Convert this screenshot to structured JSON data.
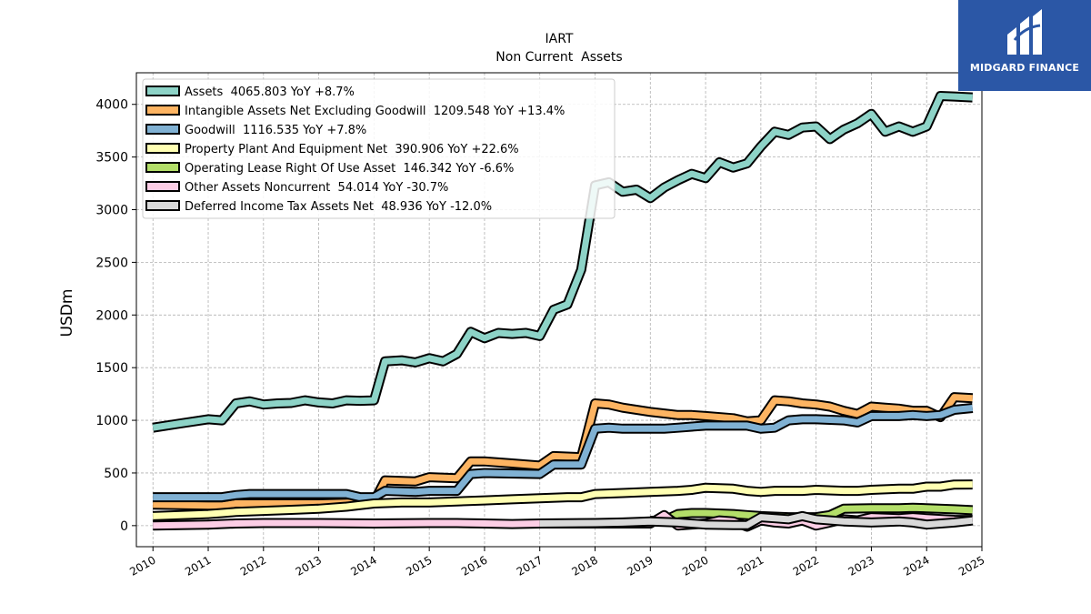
{
  "chart_data": {
    "type": "line",
    "title": "IART",
    "subtitle": "Non Current  Assets",
    "ylabel": "USDm",
    "xlabel": "",
    "ylim": [
      -200,
      4300
    ],
    "xlim": [
      2009.7,
      2025.0
    ],
    "grid": true,
    "legend_placement": "top-left",
    "x_ticks": [
      2010,
      2011,
      2012,
      2013,
      2014,
      2015,
      2016,
      2017,
      2018,
      2019,
      2020,
      2021,
      2022,
      2023,
      2024,
      2025
    ],
    "y_ticks": [
      0,
      500,
      1000,
      1500,
      2000,
      2500,
      3000,
      3500,
      4000
    ],
    "series": [
      {
        "name": "Assets",
        "legend": "Assets  4065.803 YoY +8.7%",
        "color": "#8dd3c7",
        "points": [
          [
            2010.0,
            930
          ],
          [
            2010.5,
            970
          ],
          [
            2011.0,
            1010
          ],
          [
            2011.25,
            1000
          ],
          [
            2011.5,
            1160
          ],
          [
            2011.75,
            1180
          ],
          [
            2012.0,
            1150
          ],
          [
            2012.25,
            1160
          ],
          [
            2012.5,
            1165
          ],
          [
            2012.75,
            1190
          ],
          [
            2013.0,
            1170
          ],
          [
            2013.25,
            1160
          ],
          [
            2013.5,
            1190
          ],
          [
            2013.75,
            1185
          ],
          [
            2014.0,
            1190
          ],
          [
            2014.2,
            1560
          ],
          [
            2014.5,
            1570
          ],
          [
            2014.75,
            1550
          ],
          [
            2015.0,
            1590
          ],
          [
            2015.25,
            1560
          ],
          [
            2015.5,
            1630
          ],
          [
            2015.75,
            1840
          ],
          [
            2016.0,
            1780
          ],
          [
            2016.25,
            1830
          ],
          [
            2016.5,
            1820
          ],
          [
            2016.75,
            1830
          ],
          [
            2017.0,
            1800
          ],
          [
            2017.25,
            2050
          ],
          [
            2017.5,
            2100
          ],
          [
            2017.75,
            2430
          ],
          [
            2018.0,
            3230
          ],
          [
            2018.25,
            3260
          ],
          [
            2018.5,
            3170
          ],
          [
            2018.75,
            3190
          ],
          [
            2019.0,
            3110
          ],
          [
            2019.25,
            3210
          ],
          [
            2019.5,
            3280
          ],
          [
            2019.75,
            3340
          ],
          [
            2020.0,
            3300
          ],
          [
            2020.25,
            3450
          ],
          [
            2020.5,
            3400
          ],
          [
            2020.75,
            3440
          ],
          [
            2021.0,
            3600
          ],
          [
            2021.25,
            3740
          ],
          [
            2021.5,
            3710
          ],
          [
            2021.75,
            3780
          ],
          [
            2022.0,
            3790
          ],
          [
            2022.25,
            3670
          ],
          [
            2022.5,
            3760
          ],
          [
            2022.75,
            3820
          ],
          [
            2023.0,
            3910
          ],
          [
            2023.25,
            3740
          ],
          [
            2023.5,
            3790
          ],
          [
            2023.75,
            3740
          ],
          [
            2024.0,
            3790
          ],
          [
            2024.25,
            4080
          ],
          [
            2024.5,
            4075
          ],
          [
            2024.83,
            4066
          ]
        ]
      },
      {
        "name": "Intangible Assets Net Excluding Goodwill",
        "legend": "Intangible Assets Net Excluding Goodwill  1209.548 YoY +13.4%",
        "color": "#fdb462",
        "points": [
          [
            2010.0,
            200
          ],
          [
            2011.0,
            190
          ],
          [
            2011.25,
            190
          ],
          [
            2011.5,
            210
          ],
          [
            2011.75,
            210
          ],
          [
            2012.0,
            210
          ],
          [
            2013.0,
            210
          ],
          [
            2013.75,
            220
          ],
          [
            2014.0,
            230
          ],
          [
            2014.2,
            430
          ],
          [
            2014.75,
            420
          ],
          [
            2015.0,
            460
          ],
          [
            2015.5,
            450
          ],
          [
            2015.75,
            610
          ],
          [
            2016.0,
            610
          ],
          [
            2016.5,
            590
          ],
          [
            2017.0,
            570
          ],
          [
            2017.25,
            660
          ],
          [
            2017.75,
            650
          ],
          [
            2018.0,
            1160
          ],
          [
            2018.25,
            1150
          ],
          [
            2018.5,
            1120
          ],
          [
            2019.0,
            1080
          ],
          [
            2019.5,
            1050
          ],
          [
            2019.75,
            1050
          ],
          [
            2020.0,
            1040
          ],
          [
            2020.5,
            1020
          ],
          [
            2020.75,
            990
          ],
          [
            2021.0,
            1000
          ],
          [
            2021.25,
            1190
          ],
          [
            2021.5,
            1180
          ],
          [
            2021.75,
            1160
          ],
          [
            2022.0,
            1150
          ],
          [
            2022.25,
            1130
          ],
          [
            2022.5,
            1090
          ],
          [
            2022.75,
            1060
          ],
          [
            2023.0,
            1130
          ],
          [
            2023.25,
            1120
          ],
          [
            2023.5,
            1110
          ],
          [
            2023.75,
            1090
          ],
          [
            2024.0,
            1090
          ],
          [
            2024.25,
            1030
          ],
          [
            2024.5,
            1220
          ],
          [
            2024.83,
            1210
          ]
        ]
      },
      {
        "name": "Goodwill",
        "legend": "Goodwill  1116.535 YoY +7.8%",
        "color": "#80b1d3",
        "points": [
          [
            2010.0,
            270
          ],
          [
            2011.0,
            270
          ],
          [
            2011.25,
            270
          ],
          [
            2011.5,
            290
          ],
          [
            2011.75,
            300
          ],
          [
            2013.5,
            300
          ],
          [
            2013.75,
            270
          ],
          [
            2014.0,
            270
          ],
          [
            2014.2,
            330
          ],
          [
            2014.75,
            320
          ],
          [
            2015.0,
            330
          ],
          [
            2015.5,
            330
          ],
          [
            2015.75,
            490
          ],
          [
            2016.0,
            500
          ],
          [
            2017.0,
            490
          ],
          [
            2017.25,
            580
          ],
          [
            2017.75,
            580
          ],
          [
            2018.0,
            920
          ],
          [
            2018.25,
            930
          ],
          [
            2018.5,
            920
          ],
          [
            2019.25,
            920
          ],
          [
            2019.5,
            930
          ],
          [
            2019.75,
            940
          ],
          [
            2020.0,
            950
          ],
          [
            2020.75,
            950
          ],
          [
            2021.0,
            920
          ],
          [
            2021.25,
            930
          ],
          [
            2021.5,
            1000
          ],
          [
            2021.75,
            1010
          ],
          [
            2022.0,
            1010
          ],
          [
            2022.5,
            1000
          ],
          [
            2022.75,
            980
          ],
          [
            2023.0,
            1040
          ],
          [
            2023.5,
            1040
          ],
          [
            2023.75,
            1050
          ],
          [
            2024.0,
            1040
          ],
          [
            2024.25,
            1050
          ],
          [
            2024.5,
            1100
          ],
          [
            2024.83,
            1117
          ]
        ]
      },
      {
        "name": "Property Plant And Equipment Net",
        "legend": "Property Plant And Equipment Net  390.906 YoY +22.6%",
        "color": "#ffffb3",
        "points": [
          [
            2010.0,
            90
          ],
          [
            2010.5,
            100
          ],
          [
            2011.0,
            110
          ],
          [
            2011.25,
            120
          ],
          [
            2011.5,
            130
          ],
          [
            2012.0,
            140
          ],
          [
            2012.5,
            150
          ],
          [
            2013.0,
            160
          ],
          [
            2013.5,
            180
          ],
          [
            2014.0,
            210
          ],
          [
            2014.5,
            220
          ],
          [
            2015.0,
            220
          ],
          [
            2015.5,
            230
          ],
          [
            2016.0,
            240
          ],
          [
            2016.5,
            250
          ],
          [
            2017.0,
            260
          ],
          [
            2017.5,
            270
          ],
          [
            2017.75,
            270
          ],
          [
            2018.0,
            300
          ],
          [
            2018.5,
            310
          ],
          [
            2019.0,
            320
          ],
          [
            2019.5,
            330
          ],
          [
            2019.75,
            340
          ],
          [
            2020.0,
            360
          ],
          [
            2020.5,
            350
          ],
          [
            2020.75,
            330
          ],
          [
            2021.0,
            320
          ],
          [
            2021.25,
            330
          ],
          [
            2021.75,
            330
          ],
          [
            2022.0,
            340
          ],
          [
            2022.5,
            330
          ],
          [
            2022.75,
            330
          ],
          [
            2023.0,
            340
          ],
          [
            2023.5,
            350
          ],
          [
            2023.75,
            350
          ],
          [
            2024.0,
            370
          ],
          [
            2024.25,
            370
          ],
          [
            2024.5,
            390
          ],
          [
            2024.83,
            391
          ]
        ]
      },
      {
        "name": "Operating Lease Right Of Use Asset",
        "legend": "Operating Lease Right Of Use Asset  146.342 YoY -6.6%",
        "color": "#b3de69",
        "points": [
          [
            2019.0,
            45
          ],
          [
            2019.25,
            50
          ],
          [
            2019.5,
            110
          ],
          [
            2019.75,
            120
          ],
          [
            2020.0,
            120
          ],
          [
            2020.5,
            110
          ],
          [
            2020.75,
            100
          ],
          [
            2021.0,
            90
          ],
          [
            2021.5,
            80
          ],
          [
            2022.0,
            80
          ],
          [
            2022.25,
            100
          ],
          [
            2022.5,
            160
          ],
          [
            2023.0,
            165
          ],
          [
            2023.5,
            165
          ],
          [
            2023.75,
            170
          ],
          [
            2024.0,
            165
          ],
          [
            2024.5,
            155
          ],
          [
            2024.83,
            146
          ]
        ]
      },
      {
        "name": "Other Assets Noncurrent",
        "legend": "Other Assets Noncurrent  54.014 YoY -30.7%",
        "color": "#fccde5",
        "points": [
          [
            2010.0,
            0
          ],
          [
            2011.0,
            10
          ],
          [
            2011.5,
            20
          ],
          [
            2012.0,
            25
          ],
          [
            2013.0,
            25
          ],
          [
            2014.0,
            20
          ],
          [
            2015.0,
            25
          ],
          [
            2015.5,
            25
          ],
          [
            2016.0,
            20
          ],
          [
            2016.5,
            15
          ],
          [
            2017.0,
            20
          ],
          [
            2018.0,
            20
          ],
          [
            2018.5,
            20
          ],
          [
            2019.0,
            20
          ],
          [
            2019.25,
            100
          ],
          [
            2019.5,
            0
          ],
          [
            2020.0,
            20
          ],
          [
            2020.25,
            50
          ],
          [
            2020.5,
            40
          ],
          [
            2020.75,
            -10
          ],
          [
            2021.0,
            50
          ],
          [
            2021.25,
            30
          ],
          [
            2021.5,
            20
          ],
          [
            2021.75,
            50
          ],
          [
            2022.0,
            0
          ],
          [
            2022.25,
            30
          ],
          [
            2022.5,
            60
          ],
          [
            2022.75,
            50
          ],
          [
            2023.0,
            80
          ],
          [
            2023.5,
            70
          ],
          [
            2023.75,
            80
          ],
          [
            2024.0,
            70
          ],
          [
            2024.5,
            55
          ],
          [
            2024.83,
            54
          ]
        ]
      },
      {
        "name": "Deferred Income Tax Assets Net",
        "legend": "Deferred Income Tax Assets Net  48.936 YoY -12.0%",
        "color": "#d9d9d9",
        "points": [
          [
            2017.0,
            20
          ],
          [
            2018.0,
            25
          ],
          [
            2018.5,
            30
          ],
          [
            2019.0,
            40
          ],
          [
            2019.5,
            30
          ],
          [
            2020.0,
            10
          ],
          [
            2020.5,
            5
          ],
          [
            2020.75,
            5
          ],
          [
            2021.0,
            80
          ],
          [
            2021.25,
            70
          ],
          [
            2021.5,
            60
          ],
          [
            2021.75,
            90
          ],
          [
            2022.0,
            60
          ],
          [
            2022.5,
            40
          ],
          [
            2023.0,
            30
          ],
          [
            2023.5,
            40
          ],
          [
            2023.75,
            30
          ],
          [
            2024.0,
            10
          ],
          [
            2024.5,
            30
          ],
          [
            2024.83,
            49
          ]
        ]
      }
    ]
  },
  "watermark": {
    "brand": "MIDGARD FINANCE",
    "icon": "midgard-logo-icon",
    "color": "#2b57a6"
  }
}
